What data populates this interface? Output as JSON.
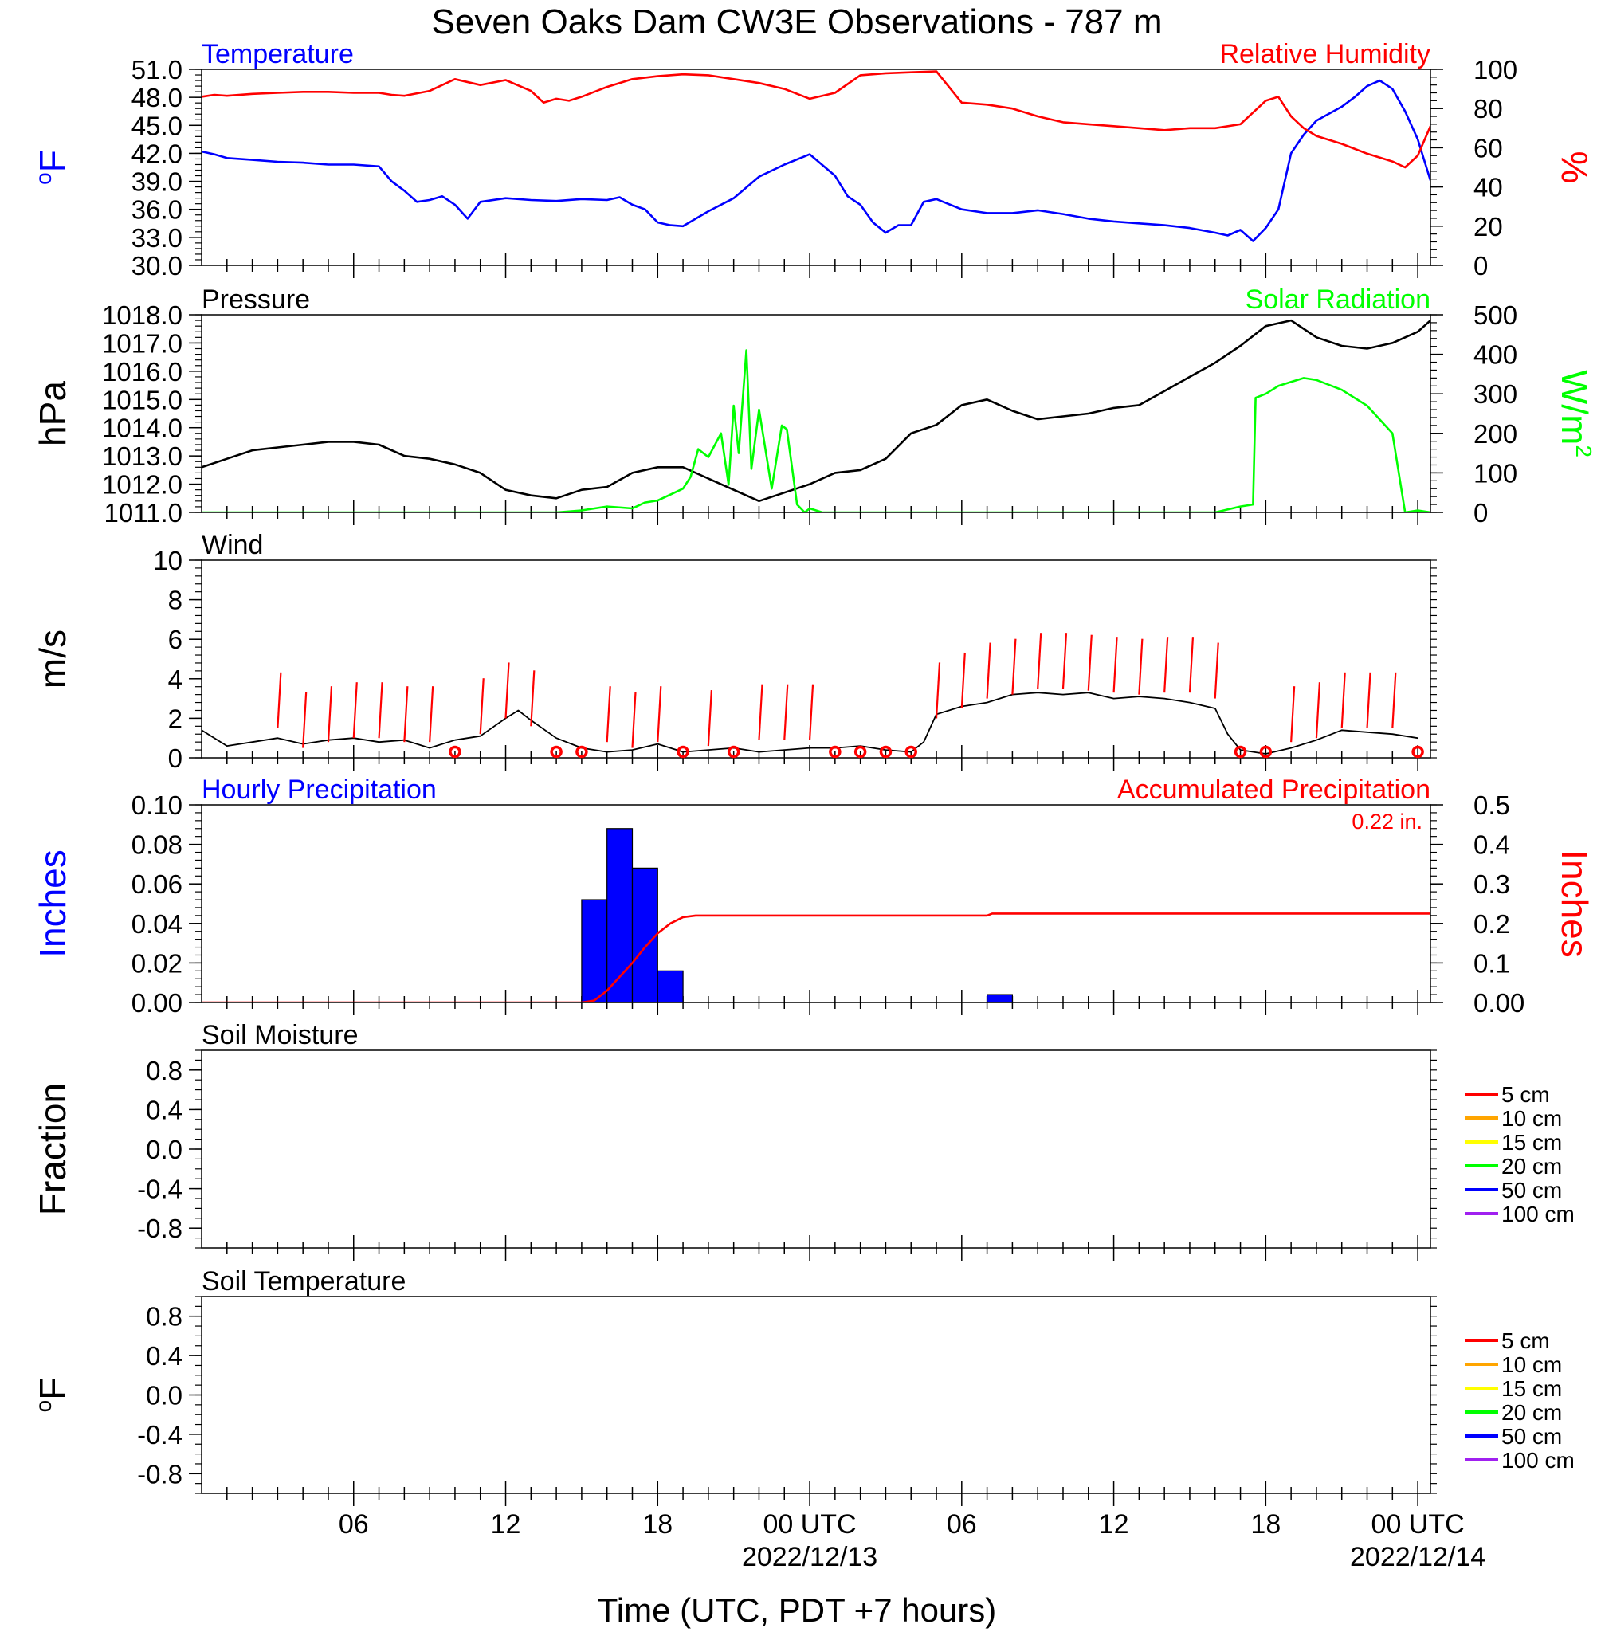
{
  "title": "Seven Oaks Dam CW3E Observations - 787 m",
  "xlabel": "Time (UTC, PDT +7 hours)",
  "x_ticks": [
    {
      "h": 6,
      "label": "06",
      "sub": ""
    },
    {
      "h": 12,
      "label": "12",
      "sub": ""
    },
    {
      "h": 18,
      "label": "18",
      "sub": ""
    },
    {
      "h": 24,
      "label": "00 UTC",
      "sub": "2022/12/13"
    },
    {
      "h": 30,
      "label": "06",
      "sub": ""
    },
    {
      "h": 36,
      "label": "12",
      "sub": ""
    },
    {
      "h": 42,
      "label": "18",
      "sub": ""
    },
    {
      "h": 48,
      "label": "00 UTC",
      "sub": "2022/12/14"
    }
  ],
  "colors": {
    "temperature": "#0000ff",
    "humidity": "#ff0000",
    "pressure": "#000000",
    "solar": "#00ff00",
    "wind": "#000000",
    "barb": "#ff0000",
    "precip_bar": "#0000ff",
    "accum": "#ff0000"
  },
  "chart_data": [
    {
      "id": "temp-rh",
      "type": "line",
      "left_title": "Temperature",
      "right_title": "Relative Humidity",
      "ylabel": "oF",
      "ylabel_right": "%",
      "ylim": [
        30,
        51
      ],
      "ylim_right": [
        0,
        100
      ],
      "yticks": [
        "30.0",
        "33.0",
        "36.0",
        "39.0",
        "42.0",
        "45.0",
        "48.0",
        "51.0"
      ],
      "yticks_right": [
        "0",
        "20",
        "40",
        "60",
        "80",
        "100"
      ],
      "xlim_hours": [
        0,
        48.5
      ],
      "series": [
        {
          "axis": "left",
          "color": "#0000ff",
          "x": [
            0,
            0.5,
            1,
            2,
            3,
            4,
            5,
            6,
            7,
            7.5,
            8,
            8.5,
            9,
            9.5,
            10,
            10.5,
            11,
            12,
            13,
            14,
            15,
            16,
            16.5,
            17,
            17.5,
            18,
            18.5,
            19,
            20,
            21,
            22,
            23,
            24,
            25,
            25.5,
            26,
            26.5,
            27,
            27.5,
            28,
            28.5,
            29,
            30,
            31,
            32,
            33,
            34,
            35,
            36,
            37,
            38,
            39,
            40,
            40.5,
            41,
            41.5,
            42,
            42.5,
            43,
            43.5,
            44,
            45,
            45.5,
            46,
            46.5,
            47,
            47.5,
            48,
            48.5
          ],
          "y": [
            42.2,
            41.9,
            41.5,
            41.3,
            41.1,
            41.0,
            40.8,
            40.8,
            40.6,
            39.0,
            38.0,
            36.8,
            37.0,
            37.4,
            36.5,
            35.0,
            36.8,
            37.2,
            37.0,
            36.9,
            37.1,
            37.0,
            37.3,
            36.5,
            36.0,
            34.6,
            34.3,
            34.2,
            35.8,
            37.2,
            39.5,
            40.8,
            41.9,
            39.6,
            37.4,
            36.5,
            34.6,
            33.5,
            34.3,
            34.3,
            36.8,
            37.1,
            36.0,
            35.6,
            35.6,
            35.9,
            35.5,
            35.0,
            34.7,
            34.5,
            34.3,
            34.0,
            33.5,
            33.2,
            33.8,
            32.6,
            34.0,
            36.0,
            42.0,
            44.0,
            45.5,
            47.0,
            48.0,
            49.2,
            49.8,
            48.9,
            46.5,
            43.5,
            39.1
          ]
        },
        {
          "axis": "right",
          "color": "#ff0000",
          "x": [
            0,
            0.5,
            1,
            2,
            3,
            4,
            5,
            6,
            7,
            7.5,
            8,
            9,
            10,
            11,
            12,
            13,
            13.5,
            14,
            14.5,
            15,
            16,
            17,
            18,
            19,
            20,
            21,
            22,
            23,
            24,
            25,
            26,
            27,
            28,
            29,
            30,
            31,
            32,
            33,
            34,
            35,
            36,
            37,
            38,
            39,
            40,
            41,
            42,
            42.5,
            43,
            43.5,
            44,
            45,
            46,
            47,
            47.5,
            48,
            48.5
          ],
          "y": [
            86,
            87,
            86.5,
            87.5,
            88,
            88.5,
            88.5,
            88,
            88,
            87,
            86.5,
            89,
            95,
            92,
            94.5,
            89,
            83,
            85,
            84,
            86,
            91,
            95,
            96.5,
            97.5,
            97,
            95,
            93,
            90,
            85,
            88,
            97,
            98,
            98.5,
            99,
            83,
            82,
            80,
            76,
            73,
            72,
            71,
            70,
            69,
            70,
            70,
            72,
            84,
            86,
            76,
            70,
            66,
            62,
            57,
            53,
            50,
            56,
            71
          ]
        }
      ]
    },
    {
      "id": "pressure-solar",
      "type": "line",
      "left_title": "Pressure",
      "right_title": "Solar Radiation",
      "ylabel": "hPa",
      "ylabel_right": "W/m2",
      "ylim": [
        1011,
        1018
      ],
      "ylim_right": [
        0,
        500
      ],
      "yticks": [
        "1011.0",
        "1012.0",
        "1013.0",
        "1014.0",
        "1015.0",
        "1016.0",
        "1017.0",
        "1018.0"
      ],
      "yticks_right": [
        "0",
        "100",
        "200",
        "300",
        "400",
        "500"
      ],
      "xlim_hours": [
        0,
        48.5
      ],
      "series": [
        {
          "axis": "left",
          "color": "#000000",
          "x": [
            0,
            1,
            2,
            3,
            4,
            5,
            6,
            7,
            8,
            9,
            10,
            11,
            12,
            13,
            14,
            15,
            16,
            17,
            18,
            19,
            20,
            21,
            22,
            23,
            24,
            25,
            26,
            27,
            28,
            29,
            30,
            31,
            32,
            33,
            34,
            35,
            36,
            37,
            38,
            39,
            40,
            41,
            42,
            43,
            44,
            45,
            46,
            47,
            48,
            48.5
          ],
          "y": [
            1012.6,
            1012.9,
            1013.2,
            1013.3,
            1013.4,
            1013.5,
            1013.5,
            1013.4,
            1013.0,
            1012.9,
            1012.7,
            1012.4,
            1011.8,
            1011.6,
            1011.5,
            1011.8,
            1011.9,
            1012.4,
            1012.6,
            1012.6,
            1012.2,
            1011.8,
            1011.4,
            1011.7,
            1012.0,
            1012.4,
            1012.5,
            1012.9,
            1013.8,
            1014.1,
            1014.8,
            1015.0,
            1014.6,
            1014.3,
            1014.4,
            1014.5,
            1014.7,
            1014.8,
            1015.3,
            1015.8,
            1016.3,
            1016.9,
            1017.6,
            1017.8,
            1017.2,
            1016.9,
            1016.8,
            1017.0,
            1017.4,
            1017.8
          ]
        },
        {
          "axis": "right",
          "color": "#00ff00",
          "x": [
            0,
            10,
            13.5,
            14,
            15,
            16,
            17,
            17.5,
            18,
            18.5,
            19,
            19.3,
            19.6,
            20,
            20.5,
            20.8,
            21,
            21.2,
            21.5,
            21.7,
            22,
            22.5,
            22.9,
            23.1,
            23.5,
            23.8,
            24,
            24.5,
            25,
            30,
            35,
            38,
            40,
            41,
            41.5,
            41.6,
            42,
            42.5,
            43,
            43.5,
            44,
            45,
            46,
            47,
            47.5,
            48,
            48.5
          ],
          "y": [
            0,
            0,
            0,
            0,
            5,
            15,
            10,
            25,
            30,
            45,
            60,
            90,
            160,
            140,
            200,
            70,
            270,
            150,
            410,
            110,
            260,
            60,
            220,
            210,
            20,
            0,
            10,
            0,
            0,
            0,
            0,
            0,
            0,
            15,
            20,
            290,
            300,
            320,
            330,
            340,
            335,
            310,
            270,
            200,
            0,
            5,
            0
          ]
        }
      ]
    },
    {
      "id": "wind",
      "type": "line",
      "left_title": "Wind",
      "ylabel": "m/s",
      "ylim": [
        0,
        10
      ],
      "yticks": [
        "0",
        "2",
        "4",
        "6",
        "8",
        "10"
      ],
      "xlim_hours": [
        0,
        48.5
      ],
      "series": [
        {
          "axis": "left",
          "color": "#000000",
          "x": [
            0,
            1,
            2,
            3,
            4,
            5,
            6,
            7,
            8,
            9,
            10,
            11,
            12,
            12.5,
            13,
            14,
            15,
            16,
            17,
            18,
            19,
            20,
            21,
            22,
            23,
            24,
            25,
            26,
            27,
            28,
            28.5,
            29,
            30,
            31,
            32,
            33,
            34,
            35,
            36,
            37,
            38,
            39,
            40,
            40.5,
            41,
            42,
            43,
            44,
            45,
            46,
            47,
            48
          ],
          "y": [
            1.4,
            0.6,
            0.8,
            1.0,
            0.7,
            0.9,
            1.0,
            0.8,
            0.9,
            0.5,
            0.9,
            1.1,
            2.0,
            2.4,
            1.9,
            1.0,
            0.5,
            0.3,
            0.4,
            0.7,
            0.3,
            0.4,
            0.5,
            0.3,
            0.4,
            0.5,
            0.5,
            0.6,
            0.4,
            0.3,
            0.8,
            2.2,
            2.6,
            2.8,
            3.2,
            3.3,
            3.2,
            3.3,
            3.0,
            3.1,
            3.0,
            2.8,
            2.5,
            1.2,
            0.4,
            0.2,
            0.5,
            0.9,
            1.4,
            1.3,
            1.2,
            1.0
          ]
        },
        {
          "axis": "left",
          "color": "#ff0000",
          "kind": "barbs",
          "x": [
            3,
            4,
            5,
            6,
            7,
            8,
            9,
            10,
            11,
            12,
            13,
            14,
            15,
            16,
            17,
            18,
            19,
            20,
            21,
            22,
            23,
            24,
            25,
            26,
            27,
            28,
            29,
            30,
            31,
            32,
            33,
            34,
            35,
            36,
            37,
            38,
            39,
            40,
            41,
            42,
            43,
            44,
            45,
            46,
            47,
            48
          ],
          "y": [
            1.5,
            0.5,
            0.8,
            1.0,
            1.0,
            0.8,
            0.8,
            0.3,
            1.2,
            2.0,
            1.6,
            0.3,
            0.3,
            0.8,
            0.5,
            0.8,
            0.3,
            0.6,
            0.3,
            0.9,
            0.9,
            0.9,
            0.3,
            0.3,
            0.3,
            0.3,
            2.0,
            2.5,
            3.0,
            3.2,
            3.5,
            3.5,
            3.4,
            3.3,
            3.2,
            3.3,
            3.3,
            3.0,
            0.3,
            0.3,
            0.8,
            1.0,
            1.5,
            1.5,
            1.5,
            0.3
          ]
        }
      ]
    },
    {
      "id": "precip",
      "type": "bar",
      "left_title": "Hourly Precipitation",
      "right_title": "Accumulated Precipitation",
      "annotation": "0.22 in.",
      "ylabel": "Inches",
      "ylabel_right": "Inches",
      "ylim": [
        0,
        0.1
      ],
      "ylim_right": [
        0,
        0.5
      ],
      "yticks": [
        "0.00",
        "0.02",
        "0.04",
        "0.06",
        "0.08",
        "0.10"
      ],
      "yticks_right": [
        "0.00",
        "0.1",
        "0.2",
        "0.3",
        "0.4",
        "0.5"
      ],
      "xlim_hours": [
        0,
        48.5
      ],
      "bars": {
        "hour_start": [
          15,
          16,
          17,
          18,
          31
        ],
        "values": [
          0.052,
          0.088,
          0.068,
          0.016,
          0.004
        ]
      },
      "series": [
        {
          "axis": "right",
          "color": "#ff0000",
          "x": [
            0,
            15,
            15.5,
            16,
            16.5,
            17,
            17.5,
            18,
            18.5,
            19,
            19.5,
            31,
            31.2,
            48.5
          ],
          "y": [
            0,
            0,
            0.005,
            0.03,
            0.065,
            0.1,
            0.14,
            0.175,
            0.2,
            0.216,
            0.22,
            0.22,
            0.225,
            0.225
          ]
        }
      ]
    },
    {
      "id": "soil-moisture",
      "type": "line",
      "left_title": "Soil Moisture",
      "ylabel": "Fraction",
      "ylim": [
        -1,
        1
      ],
      "yticks": [
        "-0.8",
        "-0.4",
        "0.0",
        "0.4",
        "0.8"
      ],
      "xlim_hours": [
        0,
        48.5
      ],
      "legend": [
        {
          "label": "5 cm",
          "color": "#ff0000"
        },
        {
          "label": "10 cm",
          "color": "#ffa500"
        },
        {
          "label": "15 cm",
          "color": "#ffff00"
        },
        {
          "label": "20 cm",
          "color": "#00ff00"
        },
        {
          "label": "50 cm",
          "color": "#0000ff"
        },
        {
          "label": "100 cm",
          "color": "#a020f0"
        }
      ],
      "series": []
    },
    {
      "id": "soil-temperature",
      "type": "line",
      "left_title": "Soil Temperature",
      "ylabel": "oF",
      "ylim": [
        -1,
        1
      ],
      "yticks": [
        "-0.8",
        "-0.4",
        "0.0",
        "0.4",
        "0.8"
      ],
      "xlim_hours": [
        0,
        48.5
      ],
      "legend": [
        {
          "label": "5 cm",
          "color": "#ff0000"
        },
        {
          "label": "10 cm",
          "color": "#ffa500"
        },
        {
          "label": "15 cm",
          "color": "#ffff00"
        },
        {
          "label": "20 cm",
          "color": "#00ff00"
        },
        {
          "label": "50 cm",
          "color": "#0000ff"
        },
        {
          "label": "100 cm",
          "color": "#a020f0"
        }
      ],
      "series": []
    }
  ]
}
